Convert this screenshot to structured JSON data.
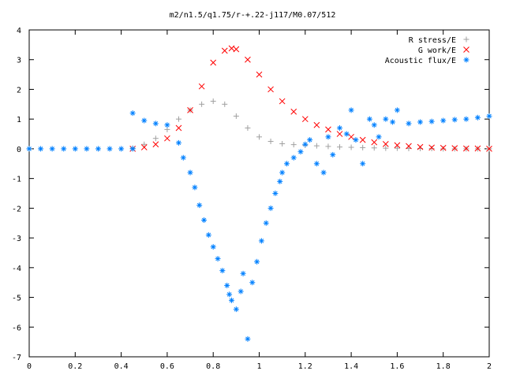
{
  "chart_data": {
    "type": "scatter",
    "title": "m2/n1.5/q1.75/r-+.22-j117/M0.07/512",
    "xlabel": "",
    "ylabel": "",
    "xlim": [
      0,
      2
    ],
    "ylim": [
      -7,
      4
    ],
    "x_ticks": [
      "0",
      "0.2",
      "0.4",
      "0.6",
      "0.8",
      "1",
      "1.2",
      "1.4",
      "1.6",
      "1.8",
      "2"
    ],
    "y_ticks": [
      "4",
      "3",
      "2",
      "1",
      "0",
      "-1",
      "-2",
      "-3",
      "-4",
      "-5",
      "-6",
      "-7"
    ],
    "grid": false,
    "legend_position": "top-right",
    "series": [
      {
        "name": "R stress/E",
        "marker": "plus",
        "color": "#a0a0a0",
        "x": [
          0.45,
          0.5,
          0.55,
          0.6,
          0.65,
          0.7,
          0.75,
          0.8,
          0.85,
          0.9,
          0.95,
          1.0,
          1.05,
          1.1,
          1.15,
          1.2,
          1.25,
          1.3,
          1.35,
          1.4,
          1.45,
          1.5,
          1.55,
          1.6,
          1.65,
          1.7,
          1.75,
          1.8,
          1.85,
          1.9,
          1.95,
          2.0
        ],
        "y": [
          0.02,
          0.15,
          0.35,
          0.65,
          1.0,
          1.3,
          1.5,
          1.6,
          1.5,
          1.1,
          0.7,
          0.4,
          0.25,
          0.17,
          0.14,
          0.12,
          0.1,
          0.08,
          0.06,
          0.05,
          0.04,
          0.03,
          0.02,
          0.02,
          0.01,
          0.01,
          0.01,
          0.0,
          0.0,
          0.0,
          0.0,
          0.0
        ]
      },
      {
        "name": "G work/E",
        "marker": "cross",
        "color": "#ff0000",
        "x": [
          0.45,
          0.5,
          0.55,
          0.6,
          0.65,
          0.7,
          0.75,
          0.8,
          0.85,
          0.88,
          0.9,
          0.95,
          1.0,
          1.05,
          1.1,
          1.15,
          1.2,
          1.25,
          1.3,
          1.35,
          1.4,
          1.45,
          1.5,
          1.55,
          1.6,
          1.65,
          1.7,
          1.75,
          1.8,
          1.85,
          1.9,
          1.95,
          2.0
        ],
        "y": [
          0.0,
          0.05,
          0.15,
          0.35,
          0.7,
          1.3,
          2.1,
          2.9,
          3.3,
          3.38,
          3.35,
          3.0,
          2.5,
          2.0,
          1.6,
          1.25,
          1.0,
          0.8,
          0.65,
          0.5,
          0.4,
          0.3,
          0.22,
          0.16,
          0.12,
          0.09,
          0.06,
          0.04,
          0.03,
          0.02,
          0.01,
          0.01,
          0.0
        ]
      },
      {
        "name": "Acoustic flux/E",
        "marker": "star",
        "color": "#0080ff",
        "x": [
          0.0,
          0.05,
          0.1,
          0.15,
          0.2,
          0.25,
          0.3,
          0.35,
          0.4,
          0.45,
          0.45,
          0.5,
          0.55,
          0.6,
          0.65,
          0.67,
          0.7,
          0.72,
          0.74,
          0.76,
          0.78,
          0.8,
          0.82,
          0.84,
          0.86,
          0.87,
          0.88,
          0.9,
          0.92,
          0.93,
          0.95,
          0.97,
          0.99,
          1.01,
          1.03,
          1.05,
          1.07,
          1.09,
          1.1,
          1.12,
          1.15,
          1.18,
          1.2,
          1.22,
          1.25,
          1.28,
          1.3,
          1.32,
          1.35,
          1.38,
          1.4,
          1.42,
          1.45,
          1.48,
          1.5,
          1.52,
          1.55,
          1.58,
          1.6,
          1.65,
          1.7,
          1.75,
          1.8,
          1.85,
          1.9,
          1.95,
          2.0
        ],
        "y": [
          0.0,
          0.0,
          0.0,
          0.0,
          0.0,
          0.0,
          0.0,
          0.0,
          0.0,
          0.0,
          1.2,
          0.95,
          0.85,
          0.8,
          0.2,
          -0.3,
          -0.8,
          -1.3,
          -1.9,
          -2.4,
          -2.9,
          -3.3,
          -3.7,
          -4.1,
          -4.6,
          -4.9,
          -5.1,
          -5.4,
          -4.8,
          -4.2,
          -6.4,
          -4.5,
          -3.8,
          -3.1,
          -2.5,
          -2.0,
          -1.5,
          -1.1,
          -0.8,
          -0.5,
          -0.3,
          -0.1,
          0.15,
          0.3,
          -0.5,
          -0.8,
          0.4,
          -0.2,
          0.7,
          0.5,
          1.3,
          0.3,
          -0.5,
          1.0,
          0.8,
          0.4,
          1.0,
          0.9,
          1.3,
          0.85,
          0.9,
          0.92,
          0.95,
          0.98,
          1.0,
          1.05,
          1.1
        ]
      }
    ]
  }
}
